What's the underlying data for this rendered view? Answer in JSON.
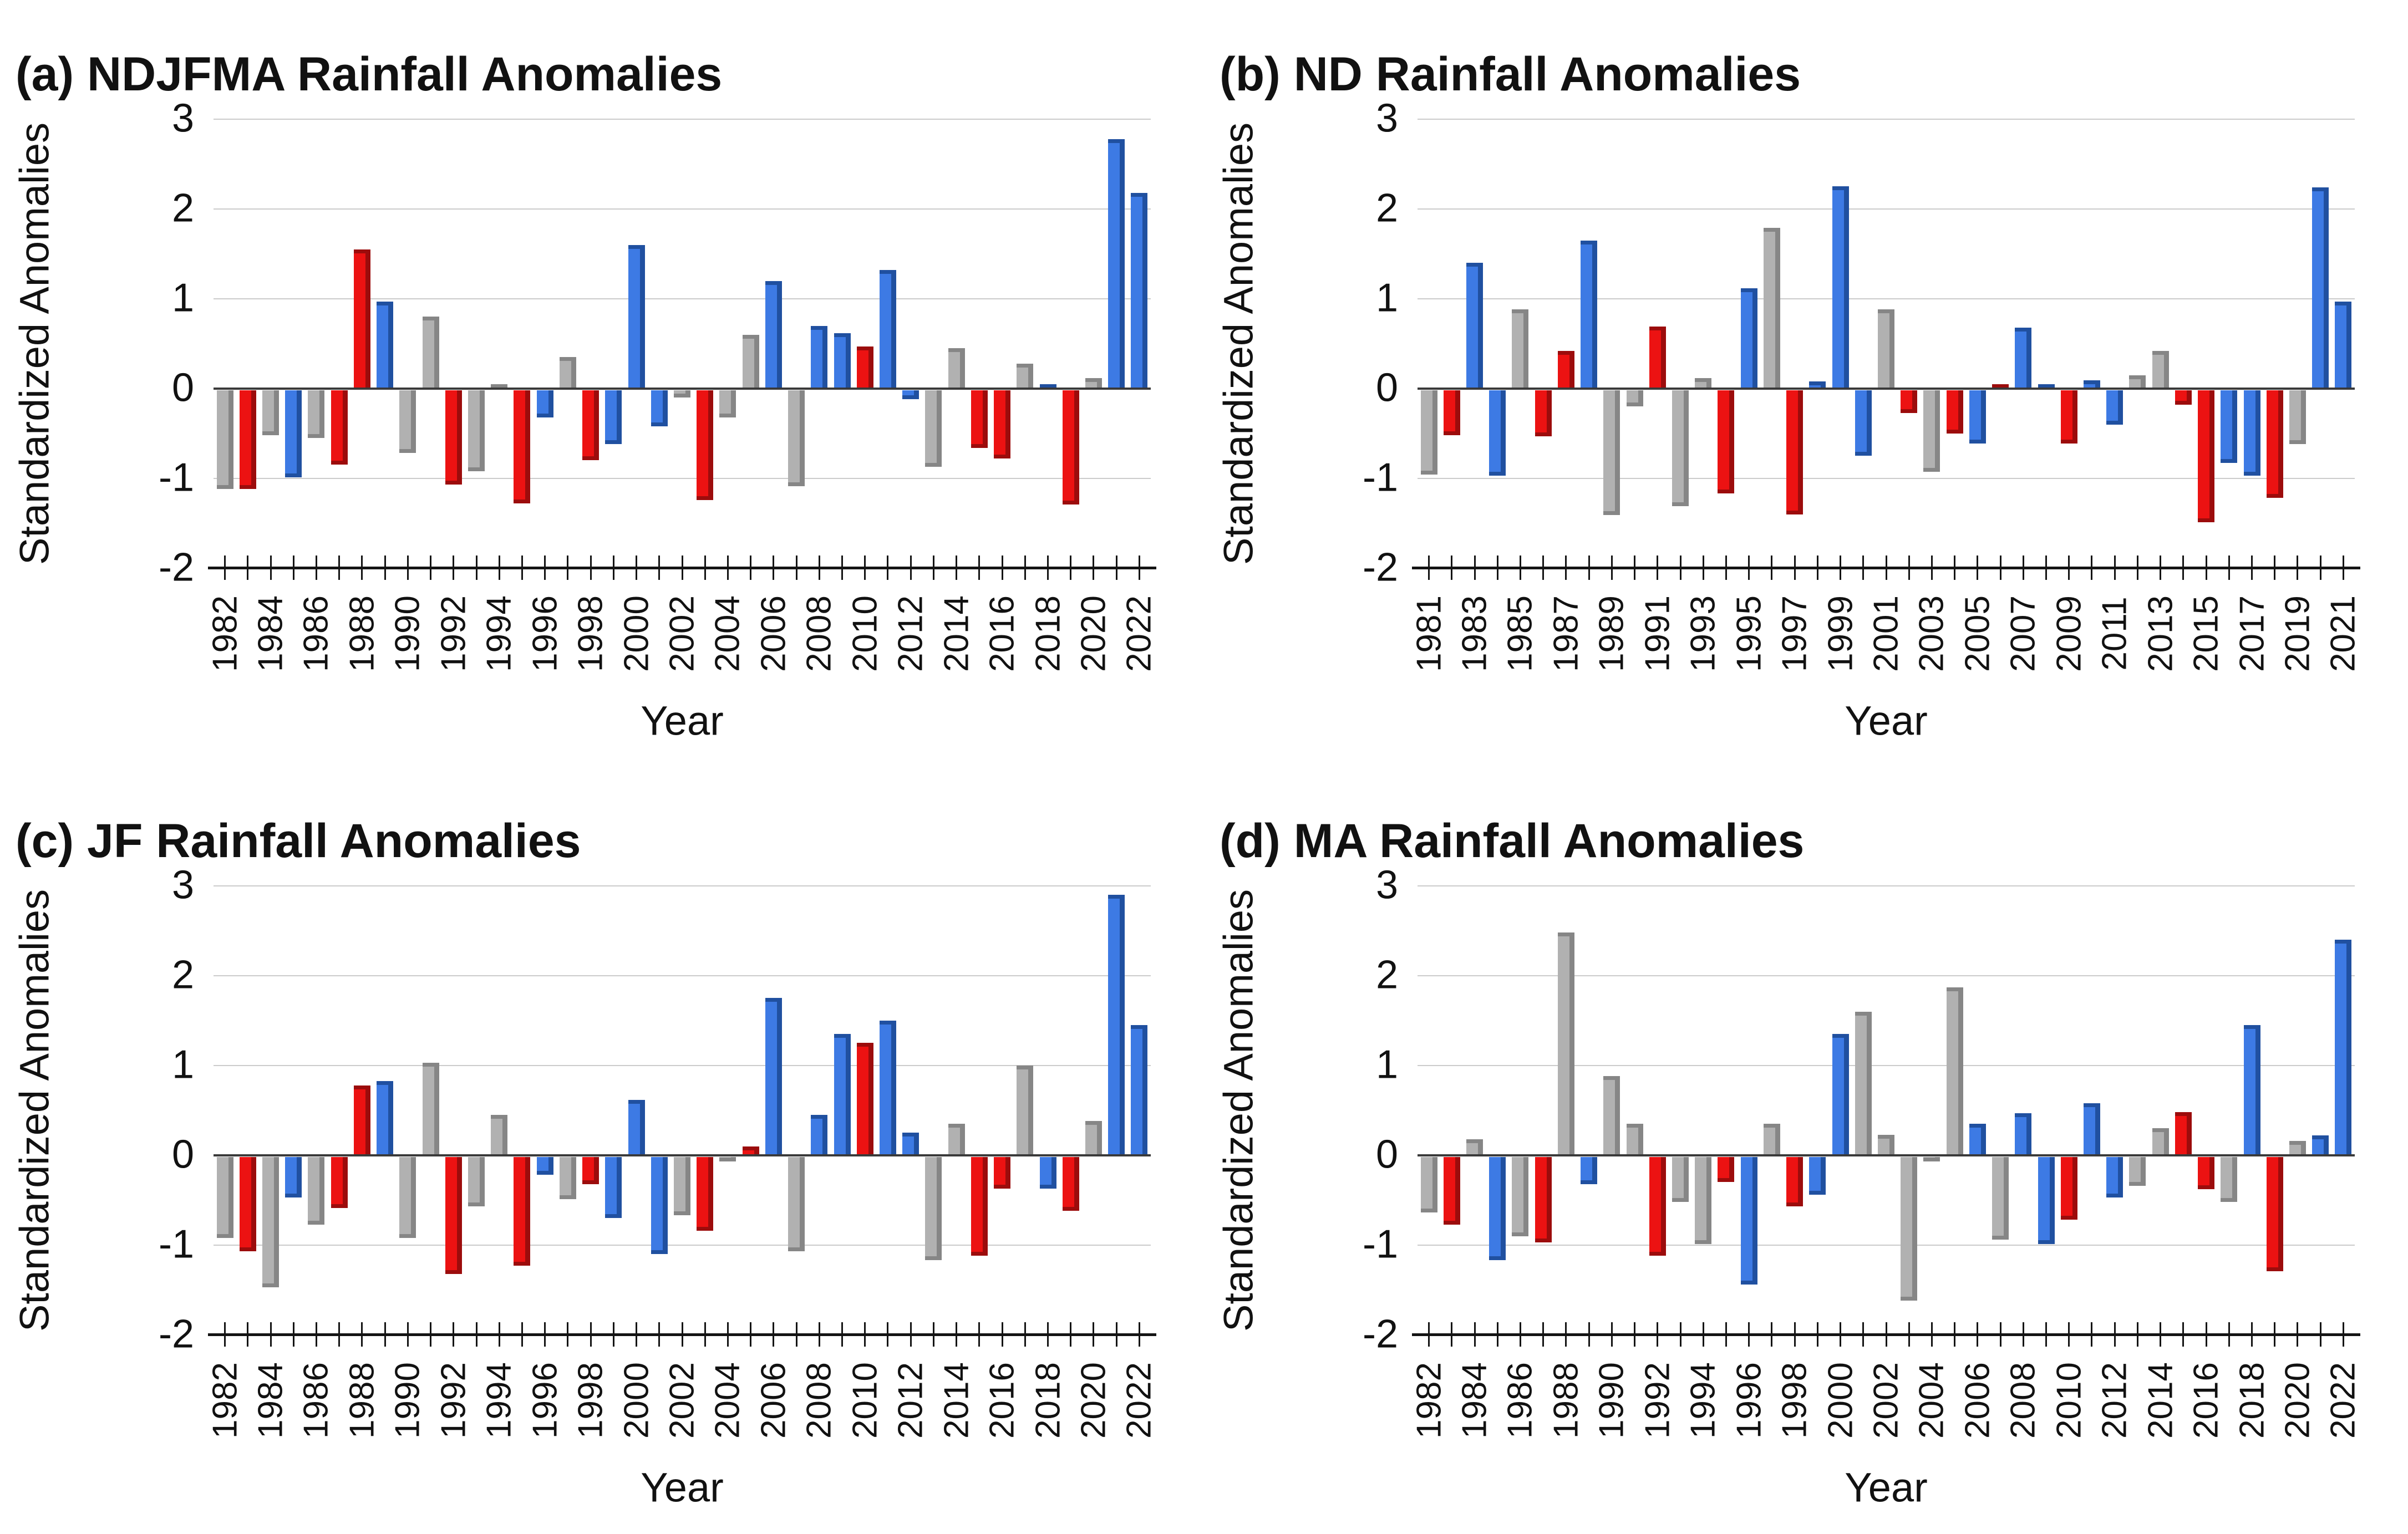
{
  "figure": {
    "ylabel": "Standardized Anomalies",
    "xlabel": "Year",
    "yticks": [
      "3",
      "2",
      "1",
      "0",
      "-1",
      "-2"
    ],
    "ytick_values": [
      3,
      2,
      1,
      0,
      -1,
      -2
    ],
    "colors": {
      "blue_bar_face": "#3d7ae4",
      "blue_bar_edge": "#2050a0",
      "red_bar_face": "#ec1212",
      "red_bar_edge": "#9c0c0c",
      "gray_bar_face": "#b1b1b1",
      "gray_bar_edge": "#868686",
      "gridline": "#cbcbcb",
      "zero_line": "#3a3a3a",
      "axis_line": "#141414"
    }
  },
  "chart_data": [
    {
      "type": "bar",
      "panel": "a",
      "title": "(a) NDJFMA Rainfall Anomalies",
      "xlabel": "Year",
      "ylabel": "Standardized Anomalies",
      "ylim": [
        -2,
        3
      ],
      "grid": "horizontal",
      "legend": "none",
      "years": [
        1982,
        1983,
        1984,
        1985,
        1986,
        1987,
        1988,
        1989,
        1990,
        1991,
        1992,
        1993,
        1994,
        1995,
        1996,
        1997,
        1998,
        1999,
        2000,
        2001,
        2002,
        2003,
        2004,
        2005,
        2006,
        2007,
        2008,
        2009,
        2010,
        2011,
        2012,
        2013,
        2014,
        2015,
        2016,
        2017,
        2018,
        2019,
        2020,
        2021,
        2022
      ],
      "values": [
        -1.1,
        -1.1,
        -0.5,
        -0.97,
        -0.53,
        -0.83,
        1.55,
        0.97,
        -0.7,
        0.8,
        -1.05,
        -0.9,
        0.05,
        -1.26,
        -0.3,
        0.35,
        -0.78,
        -0.6,
        1.6,
        -0.4,
        -0.08,
        -1.22,
        -0.3,
        0.6,
        1.2,
        -1.07,
        0.7,
        0.62,
        0.47,
        1.32,
        -0.1,
        -0.85,
        0.45,
        -0.64,
        -0.76,
        0.28,
        0.05,
        -1.27,
        0.12,
        2.78,
        2.18
      ],
      "bar_colors": [
        "g",
        "r",
        "g",
        "b",
        "g",
        "r",
        "r",
        "b",
        "g",
        "g",
        "r",
        "g",
        "g",
        "r",
        "b",
        "g",
        "r",
        "b",
        "b",
        "b",
        "g",
        "r",
        "g",
        "g",
        "b",
        "g",
        "b",
        "b",
        "r",
        "b",
        "b",
        "g",
        "g",
        "r",
        "r",
        "g",
        "b",
        "r",
        "g",
        "b",
        "b"
      ],
      "xtick_labels": [
        "1982",
        "1984",
        "1986",
        "1988",
        "1990",
        "1992",
        "1994",
        "1996",
        "1998",
        "2000",
        "2002",
        "2004",
        "2006",
        "2008",
        "2010",
        "2012",
        "2014",
        "2016",
        "2018",
        "2020",
        "2022"
      ]
    },
    {
      "type": "bar",
      "panel": "b",
      "title": "(b) ND Rainfall Anomalies",
      "xlabel": "Year",
      "ylabel": "Standardized Anomalies",
      "ylim": [
        -2,
        3
      ],
      "grid": "horizontal",
      "legend": "none",
      "years": [
        1981,
        1982,
        1983,
        1984,
        1985,
        1986,
        1987,
        1988,
        1989,
        1990,
        1991,
        1992,
        1993,
        1994,
        1995,
        1996,
        1997,
        1998,
        1999,
        2000,
        2001,
        2002,
        2003,
        2004,
        2005,
        2006,
        2007,
        2008,
        2009,
        2010,
        2011,
        2012,
        2013,
        2014,
        2015,
        2016,
        2017,
        2018,
        2019,
        2020,
        2021
      ],
      "values": [
        -0.94,
        -0.5,
        1.4,
        -0.95,
        0.88,
        -0.51,
        0.42,
        1.65,
        -1.39,
        -0.18,
        0.69,
        -1.29,
        0.12,
        -1.15,
        1.12,
        1.79,
        -1.38,
        0.08,
        2.25,
        -0.73,
        0.88,
        -0.25,
        -0.91,
        -0.48,
        -0.59,
        0.05,
        0.68,
        0.05,
        -0.59,
        0.09,
        -0.38,
        0.15,
        0.42,
        -0.16,
        -1.47,
        -0.81,
        -0.95,
        -1.2,
        -0.6,
        2.24,
        0.97
      ],
      "bar_colors": [
        "g",
        "r",
        "b",
        "b",
        "g",
        "r",
        "r",
        "b",
        "g",
        "g",
        "r",
        "g",
        "g",
        "r",
        "b",
        "g",
        "r",
        "b",
        "b",
        "b",
        "g",
        "r",
        "g",
        "r",
        "b",
        "r",
        "b",
        "b",
        "r",
        "b",
        "b",
        "g",
        "g",
        "r",
        "r",
        "b",
        "b",
        "r",
        "g",
        "b",
        "b"
      ],
      "xtick_labels": [
        "1981",
        "1983",
        "1985",
        "1987",
        "1989",
        "1991",
        "1993",
        "1995",
        "1997",
        "1999",
        "2001",
        "2003",
        "2005",
        "2007",
        "2009",
        "2011",
        "2013",
        "2015",
        "2017",
        "2019",
        "2021"
      ]
    },
    {
      "type": "bar",
      "panel": "c",
      "title": "(c) JF Rainfall Anomalies",
      "xlabel": "Year",
      "ylabel": "Standardized Anomalies",
      "ylim": [
        -2,
        3
      ],
      "grid": "horizontal",
      "legend": "none",
      "years": [
        1982,
        1983,
        1984,
        1985,
        1986,
        1987,
        1988,
        1989,
        1990,
        1991,
        1992,
        1993,
        1994,
        1995,
        1996,
        1997,
        1998,
        1999,
        2000,
        2001,
        2002,
        2003,
        2004,
        2005,
        2006,
        2007,
        2008,
        2009,
        2010,
        2011,
        2012,
        2013,
        2014,
        2015,
        2016,
        2017,
        2018,
        2019,
        2020,
        2021,
        2022
      ],
      "values": [
        -0.9,
        -1.05,
        -1.45,
        -0.45,
        -0.75,
        -0.57,
        0.78,
        0.83,
        -0.9,
        1.03,
        -1.3,
        -0.55,
        0.45,
        -1.21,
        -0.2,
        -0.47,
        -0.3,
        -0.68,
        0.62,
        -1.08,
        -0.65,
        -0.82,
        -0.05,
        0.1,
        1.75,
        -1.05,
        0.45,
        1.35,
        1.25,
        1.5,
        0.25,
        -1.15,
        0.35,
        -1.1,
        -0.35,
        1.0,
        -0.35,
        -0.6,
        0.38,
        2.9,
        1.45
      ],
      "bar_colors": [
        "g",
        "r",
        "g",
        "b",
        "g",
        "r",
        "r",
        "b",
        "g",
        "g",
        "r",
        "g",
        "g",
        "r",
        "b",
        "g",
        "r",
        "b",
        "b",
        "b",
        "g",
        "r",
        "g",
        "r",
        "b",
        "g",
        "b",
        "b",
        "r",
        "b",
        "b",
        "g",
        "g",
        "r",
        "r",
        "g",
        "b",
        "r",
        "g",
        "b",
        "b"
      ],
      "xtick_labels": [
        "1982",
        "1984",
        "1986",
        "1988",
        "1990",
        "1992",
        "1994",
        "1996",
        "1998",
        "2000",
        "2002",
        "2004",
        "2006",
        "2008",
        "2010",
        "2012",
        "2014",
        "2016",
        "2018",
        "2020",
        "2022"
      ]
    },
    {
      "type": "bar",
      "panel": "d",
      "title": "(d) MA Rainfall Anomalies",
      "xlabel": "Year",
      "ylabel": "Standardized Anomalies",
      "ylim": [
        -2,
        3
      ],
      "grid": "horizontal",
      "legend": "none",
      "years": [
        1982,
        1983,
        1984,
        1985,
        1986,
        1987,
        1988,
        1989,
        1990,
        1991,
        1992,
        1993,
        1994,
        1995,
        1996,
        1997,
        1998,
        1999,
        2000,
        2001,
        2002,
        2003,
        2004,
        2005,
        2006,
        2007,
        2008,
        2009,
        2010,
        2011,
        2012,
        2013,
        2014,
        2015,
        2016,
        2017,
        2018,
        2019,
        2020,
        2021,
        2022
      ],
      "values": [
        -0.62,
        -0.75,
        0.18,
        -1.15,
        -0.88,
        -0.95,
        2.48,
        -0.3,
        0.88,
        0.35,
        -1.1,
        -0.5,
        -0.97,
        -0.28,
        -1.42,
        0.35,
        -0.55,
        -0.42,
        1.35,
        1.6,
        0.23,
        -1.6,
        -0.05,
        1.87,
        0.35,
        -0.92,
        0.47,
        -0.97,
        -0.7,
        0.58,
        -0.45,
        -0.32,
        0.3,
        0.48,
        -0.36,
        -0.5,
        1.45,
        -1.27,
        0.16,
        0.22,
        2.4
      ],
      "bar_colors": [
        "g",
        "r",
        "g",
        "b",
        "g",
        "r",
        "g",
        "b",
        "g",
        "g",
        "r",
        "g",
        "g",
        "r",
        "b",
        "g",
        "r",
        "b",
        "b",
        "g",
        "g",
        "g",
        "g",
        "g",
        "b",
        "g",
        "b",
        "b",
        "r",
        "b",
        "b",
        "g",
        "g",
        "r",
        "r",
        "g",
        "b",
        "r",
        "g",
        "b",
        "b"
      ],
      "xtick_labels": [
        "1982",
        "1984",
        "1986",
        "1988",
        "1990",
        "1992",
        "1994",
        "1996",
        "1998",
        "2000",
        "2002",
        "2004",
        "2006",
        "2008",
        "2010",
        "2012",
        "2014",
        "2016",
        "2018",
        "2020",
        "2022"
      ]
    }
  ]
}
